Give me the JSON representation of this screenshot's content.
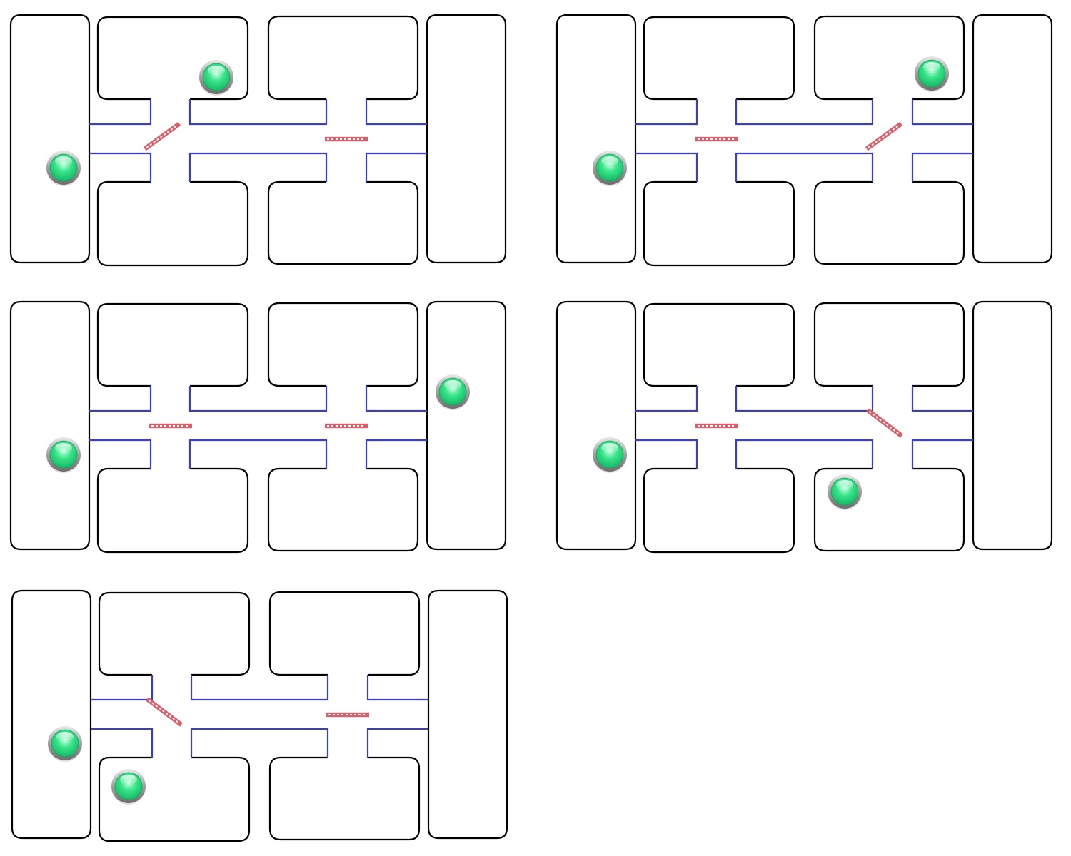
{
  "colors": {
    "room_border": "#000000",
    "corridor_wall": "#3a3fc0",
    "gate_fill": "#d8606a",
    "gate_stripe": "#ffffff",
    "ball_fill": "#39e58a",
    "ball_rim": "#6d6d6d"
  },
  "legend": {
    "ball": "green-ball-icon",
    "gate_closed": "gate-closed-icon",
    "gate_open": "gate-open-icon"
  },
  "boards": [
    {
      "gates": [
        "open-up",
        "closed"
      ],
      "balls": [
        "left",
        "upper-room-1"
      ]
    },
    {
      "gates": [
        "closed",
        "open-up"
      ],
      "balls": [
        "left",
        "upper-room-2"
      ]
    },
    {
      "gates": [
        "closed",
        "closed"
      ],
      "balls": [
        "left",
        "right"
      ]
    },
    {
      "gates": [
        "closed",
        "open-down"
      ],
      "balls": [
        "left",
        "lower-room-2"
      ]
    },
    {
      "gates": [
        "open-down",
        "closed"
      ],
      "balls": [
        "left",
        "lower-room-1"
      ]
    }
  ]
}
